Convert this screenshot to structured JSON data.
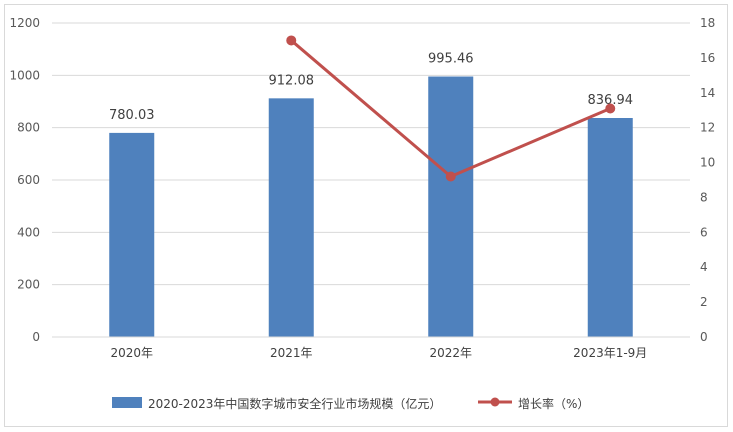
{
  "chart_data": {
    "type": "bar",
    "categories": [
      "2020年",
      "2021年",
      "2022年",
      "2023年1-9月"
    ],
    "series": [
      {
        "name": "2020-2023年中国数字城市安全行业市场规模（亿元）",
        "type": "bar",
        "axis": "left",
        "color": "#4F81BD",
        "values": [
          780.03,
          912.08,
          995.46,
          836.94
        ],
        "labels": [
          "780.03",
          "912.08",
          "995.46",
          "836.94"
        ]
      },
      {
        "name": "增长率（%）",
        "type": "line",
        "axis": "right",
        "color": "#C0504D",
        "values": [
          null,
          17.0,
          9.2,
          13.1
        ]
      }
    ],
    "y_left": {
      "min": 0,
      "max": 1200,
      "ticks": [
        "0",
        "200",
        "400",
        "600",
        "800",
        "1000",
        "1200"
      ]
    },
    "y_right": {
      "min": 0,
      "max": 18,
      "ticks": [
        "0",
        "2",
        "4",
        "6",
        "8",
        "10",
        "12",
        "14",
        "16",
        "18"
      ]
    },
    "grid": true,
    "legend": "bottom"
  }
}
